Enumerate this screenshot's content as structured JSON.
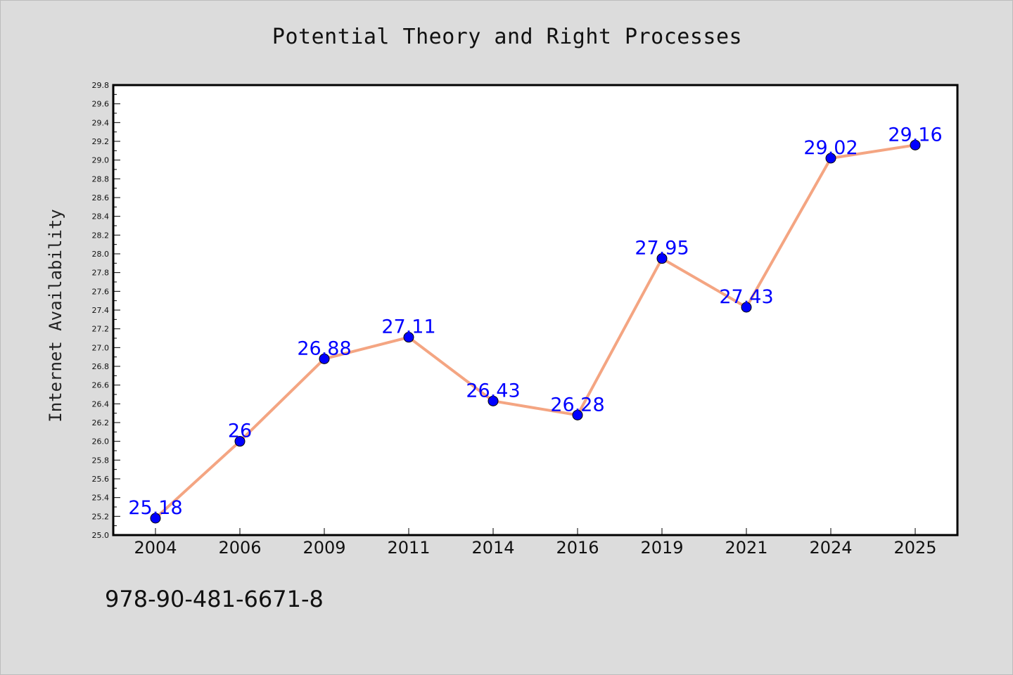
{
  "chart_data": {
    "type": "line",
    "title": "Potential Theory and Right Processes",
    "xlabel": "",
    "ylabel": "Internet Availability",
    "categories": [
      "2004",
      "2006",
      "2009",
      "2011",
      "2014",
      "2016",
      "2019",
      "2021",
      "2024",
      "2025"
    ],
    "series": [
      {
        "values": [
          25.18,
          26,
          26.88,
          27.11,
          26.43,
          26.28,
          27.95,
          27.43,
          29.02,
          29.16
        ],
        "data_labels": [
          "25.18",
          "26",
          "26.88",
          "27.11",
          "26.43",
          "26.28",
          "27.95",
          "27.43",
          "29.02",
          "29.16"
        ]
      }
    ],
    "ylim": [
      25.0,
      29.8
    ],
    "yticks": [
      "25.0",
      "25.2",
      "25.4",
      "25.6",
      "25.8",
      "26.0",
      "26.2",
      "26.4",
      "26.6",
      "26.8",
      "27.0",
      "27.2",
      "27.4",
      "27.6",
      "27.8",
      "28.0",
      "28.2",
      "28.4",
      "28.6",
      "28.8",
      "29.0",
      "29.2",
      "29.4",
      "29.6",
      "29.8"
    ],
    "grid": false,
    "legend": "none",
    "colors": {
      "line": "#f4a582",
      "marker": "#0000ff",
      "label": "#0000ff",
      "background": "#dcdcdc",
      "plot_background": "#ffffff"
    }
  },
  "footer": {
    "isbn": "978-90-481-6671-8"
  }
}
